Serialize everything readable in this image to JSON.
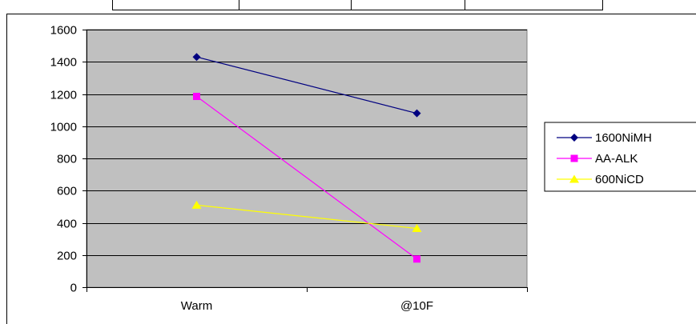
{
  "chart_data": {
    "type": "line",
    "categories": [
      "Warm",
      "@10F"
    ],
    "series": [
      {
        "name": "1600NiMH",
        "values": [
          1430,
          1080
        ],
        "color": "#000080",
        "marker": "diamond"
      },
      {
        "name": "AA-ALK",
        "values": [
          1185,
          175
        ],
        "color": "#ff00ff",
        "marker": "square"
      },
      {
        "name": "600NiCD",
        "values": [
          510,
          365
        ],
        "color": "#ffff00",
        "marker": "triangle"
      }
    ],
    "title": "",
    "xlabel": "",
    "ylabel": "",
    "ylim": [
      0,
      1600
    ],
    "yticks": [
      "0",
      "200",
      "400",
      "600",
      "800",
      "1000",
      "1200",
      "1400",
      "1600"
    ],
    "grid": true,
    "plot_background": "#c0c0c0",
    "legend_position": "right"
  }
}
